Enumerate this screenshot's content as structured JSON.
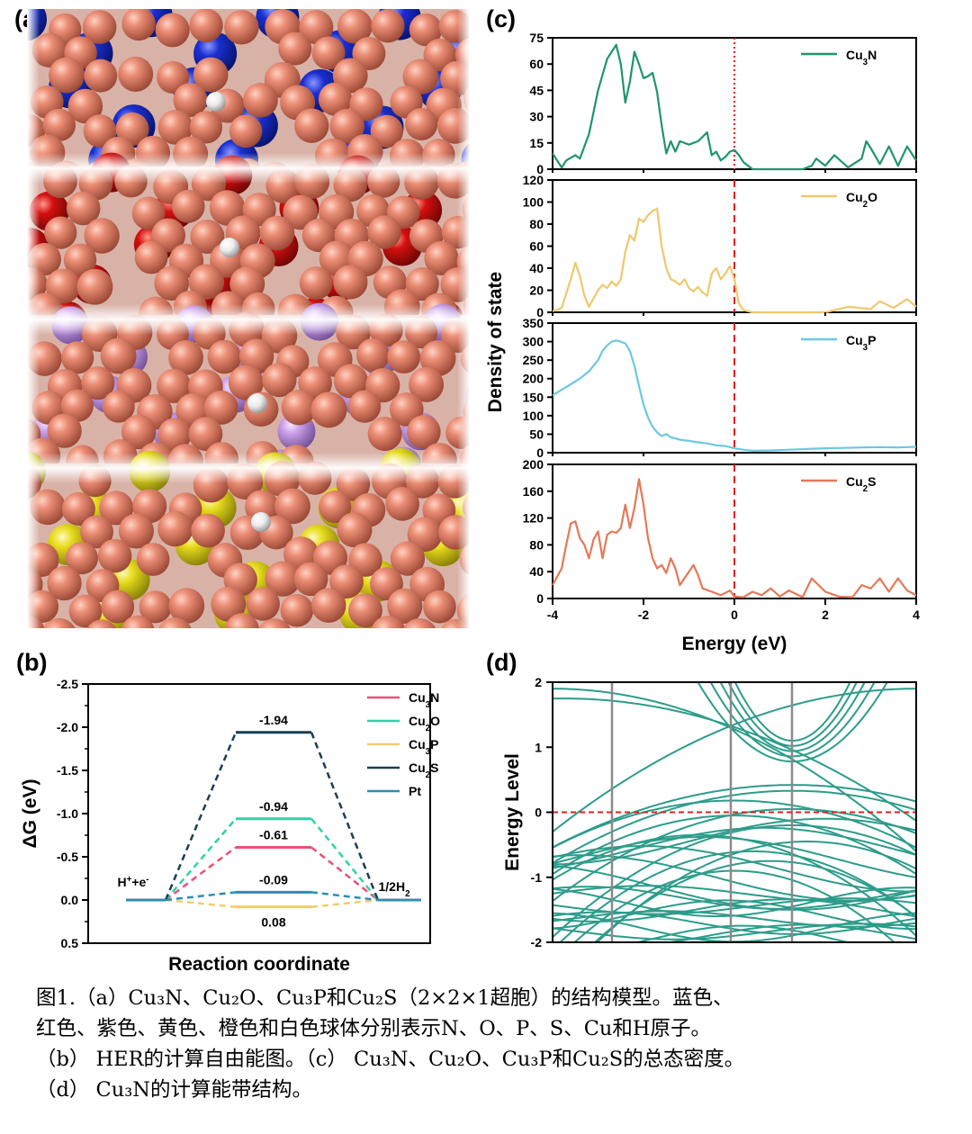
{
  "panels": {
    "a": {
      "label": "(a)"
    },
    "b": {
      "label": "(b)"
    },
    "c": {
      "label": "(c)"
    },
    "d": {
      "label": "(d)"
    }
  },
  "colors": {
    "Cu": "#e07a62",
    "N": "#1a2fd0",
    "O": "#d4100f",
    "P": "#c79be6",
    "S": "#e7dc1c",
    "H": "#f0f0f0",
    "Cu3N": "#1f9470",
    "Cu2O": "#efc86c",
    "Cu3P": "#6cc8e2",
    "Cu2S": "#e57858",
    "b_Cu3N": "#ee4e77",
    "b_Cu2O": "#2cd2a8",
    "b_Cu3P": "#f2cc6c",
    "b_Cu2S": "#1c3f50",
    "b_Pt": "#2b8eb6",
    "band": "#2c9c8a",
    "fermi": "#e02020",
    "kline": "#8a8a8a"
  },
  "chart_data": [
    {
      "panel": "b",
      "type": "line",
      "ylabel": "ΔG (eV)",
      "xlabel": "Reaction coordinate",
      "ylim": [
        0.5,
        -2.5
      ],
      "yticks": [
        "-2.5",
        "-2.0",
        "-1.5",
        "-1.0",
        "-0.5",
        "0.0",
        "0.5"
      ],
      "stages": [
        "H⁺+e⁻",
        "",
        "1/2H₂"
      ],
      "series": [
        {
          "name": "Cu₃N",
          "value": -0.61,
          "label": "-0.61"
        },
        {
          "name": "Cu₂O",
          "value": -0.94,
          "label": "-0.94"
        },
        {
          "name": "Cu₃P",
          "value": 0.08,
          "label": "0.08"
        },
        {
          "name": "Cu₂S",
          "value": -1.94,
          "label": "-1.94"
        },
        {
          "name": "Pt",
          "value": -0.09,
          "label": "-0.09"
        }
      ],
      "legend": "top-right"
    },
    {
      "panel": "c",
      "type": "line",
      "ylabel": "Density of state",
      "xlabel": "Energy (eV)",
      "xlim": [
        -4,
        4
      ],
      "xticks": [
        "-4",
        "-2",
        "0",
        "2",
        "4"
      ],
      "subplots": [
        {
          "name": "Cu₃N",
          "ylim": [
            0,
            75
          ],
          "yticks": [
            "0",
            "15",
            "30",
            "45",
            "60",
            "75"
          ],
          "x": [
            -4,
            -3.8,
            -3.7,
            -3.5,
            -3.4,
            -3.2,
            -3.0,
            -2.8,
            -2.6,
            -2.5,
            -2.4,
            -2.3,
            -2.2,
            -2.1,
            -2.0,
            -1.9,
            -1.8,
            -1.7,
            -1.6,
            -1.5,
            -1.4,
            -1.3,
            -1.2,
            -1.0,
            -0.8,
            -0.6,
            -0.5,
            -0.4,
            -0.3,
            -0.2,
            -0.1,
            0.0,
            0.1,
            0.2,
            0.4,
            1.0,
            1.5,
            1.7,
            1.8,
            2.0,
            2.2,
            2.5,
            2.8,
            2.9,
            3.0,
            3.2,
            3.4,
            3.6,
            3.8,
            4.0
          ],
          "y": [
            9,
            1,
            5,
            8,
            6,
            20,
            45,
            63,
            71,
            60,
            38,
            50,
            67,
            60,
            52,
            53,
            55,
            44,
            25,
            9,
            16,
            10,
            16,
            14,
            16,
            21,
            8,
            10,
            5,
            7,
            10,
            11,
            8,
            4,
            0,
            0,
            0,
            2,
            6,
            2,
            8,
            1,
            6,
            16,
            12,
            3,
            13,
            2,
            13,
            5
          ]
        },
        {
          "name": "Cu₂O",
          "ylim": [
            0,
            120
          ],
          "yticks": [
            "0",
            "20",
            "40",
            "60",
            "80",
            "100",
            "120"
          ],
          "x": [
            -4,
            -3.8,
            -3.6,
            -3.5,
            -3.4,
            -3.3,
            -3.2,
            -3.0,
            -2.9,
            -2.8,
            -2.7,
            -2.6,
            -2.5,
            -2.4,
            -2.3,
            -2.2,
            -2.1,
            -2.0,
            -1.9,
            -1.8,
            -1.7,
            -1.6,
            -1.5,
            -1.4,
            -1.3,
            -1.2,
            -1.1,
            -1.0,
            -0.9,
            -0.8,
            -0.7,
            -0.6,
            -0.5,
            -0.4,
            -0.3,
            -0.2,
            -0.1,
            0.0,
            0.1,
            0.2,
            0.4,
            1.0,
            2.0,
            2.5,
            3.0,
            3.2,
            3.5,
            3.8,
            4.0
          ],
          "y": [
            1,
            4,
            30,
            45,
            33,
            15,
            5,
            20,
            25,
            22,
            28,
            24,
            30,
            55,
            70,
            65,
            85,
            82,
            88,
            92,
            94,
            60,
            40,
            30,
            28,
            25,
            30,
            22,
            19,
            23,
            18,
            15,
            35,
            40,
            30,
            35,
            42,
            30,
            8,
            2,
            0,
            0,
            0,
            5,
            3,
            10,
            4,
            12,
            5
          ]
        },
        {
          "name": "Cu₃P",
          "ylim": [
            0,
            350
          ],
          "yticks": [
            "0",
            "50",
            "100",
            "150",
            "200",
            "250",
            "300",
            "350"
          ],
          "x": [
            -4,
            -3.8,
            -3.6,
            -3.4,
            -3.2,
            -3.0,
            -2.9,
            -2.8,
            -2.7,
            -2.6,
            -2.5,
            -2.4,
            -2.3,
            -2.2,
            -2.1,
            -2.0,
            -1.9,
            -1.8,
            -1.7,
            -1.6,
            -1.5,
            -1.4,
            -1.2,
            -1.0,
            -0.8,
            -0.6,
            -0.4,
            -0.2,
            0.0,
            0.2,
            0.4,
            0.8,
            1.2,
            1.6,
            2.0,
            2.4,
            2.8,
            3.2,
            3.6,
            4.0
          ],
          "y": [
            155,
            170,
            185,
            200,
            220,
            250,
            275,
            290,
            300,
            303,
            300,
            295,
            275,
            235,
            180,
            130,
            95,
            70,
            55,
            45,
            50,
            42,
            35,
            32,
            28,
            25,
            20,
            18,
            12,
            8,
            5,
            6,
            8,
            10,
            12,
            13,
            14,
            15,
            14,
            16
          ]
        },
        {
          "name": "Cu₂S",
          "ylim": [
            0,
            200
          ],
          "yticks": [
            "0",
            "40",
            "80",
            "120",
            "160",
            "200"
          ],
          "x": [
            -4,
            -3.8,
            -3.7,
            -3.6,
            -3.5,
            -3.4,
            -3.3,
            -3.2,
            -3.1,
            -3.0,
            -2.9,
            -2.8,
            -2.7,
            -2.6,
            -2.5,
            -2.4,
            -2.3,
            -2.2,
            -2.1,
            -2.0,
            -1.9,
            -1.8,
            -1.7,
            -1.6,
            -1.5,
            -1.4,
            -1.3,
            -1.2,
            -1.1,
            -1.0,
            -0.9,
            -0.8,
            -0.7,
            -0.5,
            -0.3,
            -0.1,
            0.0,
            0.2,
            0.4,
            0.6,
            0.8,
            1.0,
            1.2,
            1.5,
            1.7,
            2.0,
            2.3,
            2.6,
            2.8,
            3.0,
            3.2,
            3.4,
            3.6,
            3.8,
            4.0
          ],
          "y": [
            20,
            45,
            80,
            112,
            115,
            90,
            80,
            60,
            88,
            100,
            60,
            95,
            100,
            98,
            105,
            140,
            105,
            135,
            178,
            140,
            90,
            60,
            45,
            50,
            38,
            60,
            45,
            20,
            30,
            40,
            50,
            35,
            15,
            10,
            5,
            12,
            3,
            2,
            10,
            5,
            15,
            3,
            12,
            2,
            30,
            10,
            3,
            2,
            20,
            15,
            30,
            10,
            30,
            12,
            5
          ]
        }
      ]
    },
    {
      "panel": "d",
      "type": "line",
      "ylabel": "Energy Level",
      "ylim": [
        -2,
        2
      ],
      "yticks": [
        "-2",
        "-1",
        "0",
        "1",
        "2"
      ]
    }
  ],
  "caption": {
    "line1": "图1.（a）Cu₃N、Cu₂O、Cu₃P和Cu₂S（2×2×1超胞）的结构模型。蓝色、",
    "line2": "红色、紫色、黄色、橙色和白色球体分别表示N、O、P、S、Cu和H原子。",
    "line3": "（b） HER的计算自由能图。（c） Cu₃N、Cu₂O、Cu₃P和Cu₂S的总态密度。",
    "line4": "（d） Cu₃N的计算能带结构。"
  }
}
